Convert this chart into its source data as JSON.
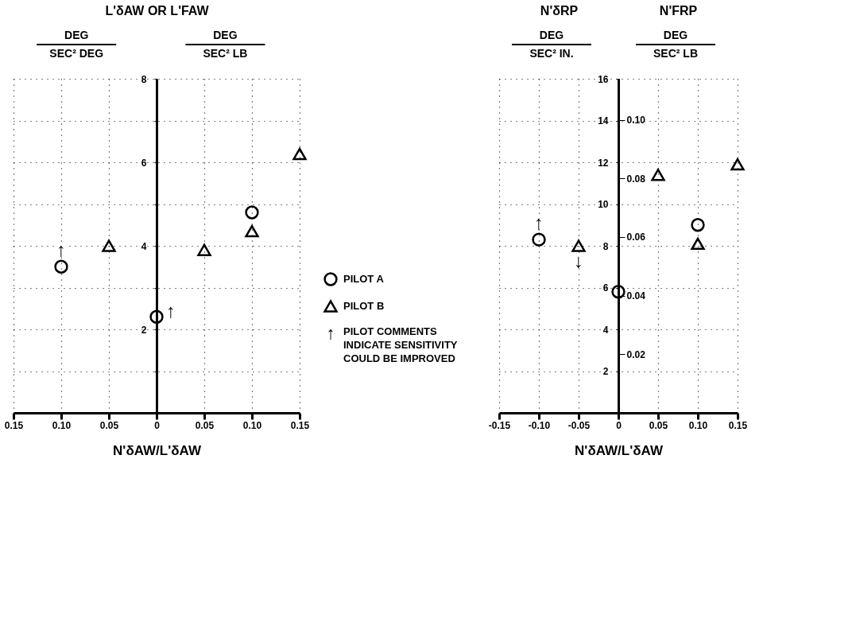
{
  "chart_data": [
    {
      "type": "scatter",
      "ylabel": "L'δAW OR L'FAW",
      "xlabel": "N'δAW/L'δAW",
      "legend": "right",
      "grid": true,
      "annotations": [
        "DEG",
        "SEC² DEG",
        "DEG",
        "SEC² LB",
        {
          "text": "↑",
          "x": -0.1,
          "y": 3.5
        },
        {
          "text": "↑",
          "x": 0,
          "y": 2.3
        },
        "↑",
        "PILOT COMMENTS INDICATE SENSITIVITY COULD BE IMPROVED"
      ],
      "xlim": [
        -0.15,
        0.15
      ],
      "xticks": [
        {
          "value": -0.15,
          "label": "0.15"
        },
        {
          "value": -0.1,
          "label": "0.10"
        },
        {
          "value": -0.05,
          "label": "0.05"
        },
        {
          "value": 0,
          "label": "0"
        },
        {
          "value": 0.05,
          "label": "0.05"
        },
        {
          "value": 0.1,
          "label": "0.10"
        },
        {
          "value": 0.15,
          "label": "0.15"
        }
      ],
      "ylim": [
        0,
        8
      ],
      "yticks": [
        {
          "value": 0,
          "label": null
        },
        {
          "value": 1,
          "label": null
        },
        2,
        {
          "value": 3,
          "label": null
        },
        4,
        {
          "value": 5,
          "label": null
        },
        6,
        {
          "value": 7,
          "label": null
        },
        8
      ],
      "series": [
        {
          "name": "PILOT A",
          "color": "#000000",
          "marker": "circle",
          "x": [
            -0.1,
            0,
            0.1
          ],
          "values": [
            3.5,
            2.3,
            4.8
          ]
        },
        {
          "name": "PILOT B",
          "color": "#000000",
          "marker": "triangle",
          "x": [
            -0.05,
            0.05,
            0.1,
            0.15
          ],
          "values": [
            4.0,
            3.9,
            4.35,
            6.2
          ]
        }
      ]
    },
    {
      "type": "scatter",
      "ylabel": "N'δRP",
      "y2label": "N'FRP",
      "xlabel": "N'δAW/L'δAW",
      "grid": true,
      "annotations": [
        "DEG",
        "SEC² IN.",
        "DEG",
        "SEC² LB",
        {
          "text": "↑",
          "x": -0.1,
          "y": 8.3
        },
        {
          "text": "↓",
          "x": -0.05,
          "y": 8.0
        }
      ],
      "xlim": [
        -0.15,
        0.15
      ],
      "xticks": [
        {
          "value": -0.15,
          "label": "-0.15"
        },
        {
          "value": -0.1,
          "label": "-0.10"
        },
        {
          "value": -0.05,
          "label": "-0.05"
        },
        {
          "value": 0,
          "label": "0"
        },
        {
          "value": 0.05,
          "label": "0.05"
        },
        {
          "value": 0.1,
          "label": "0.10"
        },
        {
          "value": 0.15,
          "label": "0.15"
        }
      ],
      "ylim": [
        0,
        16
      ],
      "yticks": [
        {
          "value": 0,
          "label": null
        },
        2,
        4,
        6,
        8,
        10,
        12,
        14,
        16
      ],
      "y2lim": [
        0,
        0.114
      ],
      "y2ticks": [
        0.02,
        0.04,
        0.06,
        0.08,
        {
          "value": 0.1,
          "label": "0.10"
        }
      ],
      "series": [
        {
          "color": "#000000",
          "marker": "circle",
          "x": [
            -0.1,
            0,
            0.1
          ],
          "values": [
            8.3,
            5.8,
            9.0
          ]
        },
        {
          "color": "#000000",
          "marker": "triangle",
          "x": [
            -0.05,
            0.05,
            0.1,
            0.15
          ],
          "values": [
            8.0,
            11.4,
            8.1,
            11.9
          ]
        }
      ]
    }
  ]
}
